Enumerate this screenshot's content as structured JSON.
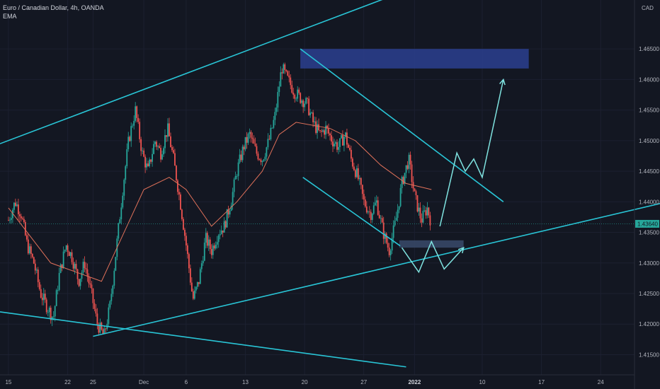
{
  "legend": {
    "title": "Euro / Canadian Dollar, 4h, OANDA",
    "indicator": "EMA"
  },
  "currency": "CAD",
  "colors": {
    "background": "#131722",
    "bull": "#26a69a",
    "bear": "#ef5350",
    "ema": "#e0715a",
    "drawing": "#29c5d6",
    "zone_upper": "#2b3f8f",
    "zone_lower": "#3a4a6a",
    "arrow": "#7fe3e0",
    "price_tag": "#26a69a"
  },
  "chart_data": {
    "type": "candlestick",
    "symbol": "Euro / Canadian Dollar",
    "interval": "4h",
    "source": "OANDA",
    "x_ticks": [
      {
        "label": "15",
        "day": 0
      },
      {
        "label": "22",
        "day": 7
      },
      {
        "label": "25",
        "day": 10
      },
      {
        "label": "Dec",
        "day": 16
      },
      {
        "label": "6",
        "day": 21
      },
      {
        "label": "13",
        "day": 28
      },
      {
        "label": "20",
        "day": 35
      },
      {
        "label": "27",
        "day": 42
      },
      {
        "label": "2022",
        "day": 48,
        "bold": true
      },
      {
        "label": "10",
        "day": 56
      },
      {
        "label": "17",
        "day": 63
      },
      {
        "label": "24",
        "day": 70
      }
    ],
    "y_ticks": [
      "1.46500",
      "1.46000",
      "1.45500",
      "1.45000",
      "1.44500",
      "1.44000",
      "1.43500",
      "1.43000",
      "1.42500",
      "1.42000",
      "1.41500"
    ],
    "y_range": [
      1.4117,
      1.473
    ],
    "current_price": "1.43640",
    "price_path": [
      [
        0.0,
        1.437
      ],
      [
        0.8,
        1.44
      ],
      [
        1.5,
        1.438
      ],
      [
        2.2,
        1.433
      ],
      [
        3.0,
        1.43
      ],
      [
        3.8,
        1.425
      ],
      [
        4.5,
        1.423
      ],
      [
        5.3,
        1.421
      ],
      [
        6.0,
        1.428
      ],
      [
        6.8,
        1.433
      ],
      [
        7.5,
        1.431
      ],
      [
        8.3,
        1.427
      ],
      [
        9.0,
        1.43
      ],
      [
        9.8,
        1.425
      ],
      [
        10.5,
        1.42
      ],
      [
        11.3,
        1.418
      ],
      [
        12.0,
        1.423
      ],
      [
        12.8,
        1.433
      ],
      [
        13.5,
        1.442
      ],
      [
        14.2,
        1.45
      ],
      [
        15.0,
        1.455
      ],
      [
        15.8,
        1.448
      ],
      [
        16.5,
        1.445
      ],
      [
        17.3,
        1.45
      ],
      [
        18.0,
        1.448
      ],
      [
        18.8,
        1.452
      ],
      [
        19.5,
        1.447
      ],
      [
        20.3,
        1.44
      ],
      [
        21.0,
        1.433
      ],
      [
        21.8,
        1.424
      ],
      [
        22.5,
        1.427
      ],
      [
        23.3,
        1.434
      ],
      [
        24.0,
        1.432
      ],
      [
        24.8,
        1.435
      ],
      [
        25.5,
        1.436
      ],
      [
        26.3,
        1.44
      ],
      [
        27.0,
        1.445
      ],
      [
        27.8,
        1.449
      ],
      [
        28.5,
        1.451
      ],
      [
        29.3,
        1.448
      ],
      [
        30.0,
        1.447
      ],
      [
        30.8,
        1.45
      ],
      [
        31.5,
        1.454
      ],
      [
        32.3,
        1.462
      ],
      [
        33.0,
        1.46
      ],
      [
        33.8,
        1.458
      ],
      [
        34.5,
        1.457
      ],
      [
        35.3,
        1.456
      ],
      [
        36.0,
        1.453
      ],
      [
        36.8,
        1.451
      ],
      [
        37.5,
        1.452
      ],
      [
        38.3,
        1.45
      ],
      [
        39.0,
        1.449
      ],
      [
        39.8,
        1.451
      ],
      [
        40.5,
        1.447
      ],
      [
        41.3,
        1.444
      ],
      [
        42.0,
        1.44
      ],
      [
        42.8,
        1.438
      ],
      [
        43.5,
        1.44
      ],
      [
        44.3,
        1.435
      ],
      [
        45.0,
        1.432
      ],
      [
        45.8,
        1.437
      ],
      [
        46.5,
        1.443
      ],
      [
        47.3,
        1.447
      ],
      [
        48.0,
        1.441
      ],
      [
        48.8,
        1.437
      ],
      [
        49.5,
        1.439
      ],
      [
        50.0,
        1.4364
      ]
    ],
    "ema_path": [
      [
        0,
        1.439
      ],
      [
        5,
        1.43
      ],
      [
        9,
        1.428
      ],
      [
        11,
        1.427
      ],
      [
        13,
        1.433
      ],
      [
        16,
        1.442
      ],
      [
        19,
        1.444
      ],
      [
        21,
        1.442
      ],
      [
        24,
        1.436
      ],
      [
        27,
        1.44
      ],
      [
        30,
        1.445
      ],
      [
        32,
        1.451
      ],
      [
        34,
        1.453
      ],
      [
        38,
        1.452
      ],
      [
        41,
        1.45
      ],
      [
        44,
        1.446
      ],
      [
        47,
        1.443
      ],
      [
        50,
        1.442
      ]
    ],
    "trend_lines": [
      {
        "name": "upper-channel",
        "from": [
          -1,
          1.4495
        ],
        "to": [
          45,
          1.4735
        ]
      },
      {
        "name": "lower-support",
        "from": [
          10,
          1.418
        ],
        "to": [
          81,
          1.441
        ]
      },
      {
        "name": "lower-falling",
        "from": [
          -1,
          1.422
        ],
        "to": [
          47,
          1.413
        ]
      },
      {
        "name": "wedge-top",
        "from": [
          34.5,
          1.465
        ],
        "to": [
          58.5,
          1.44
        ]
      },
      {
        "name": "wedge-bottom",
        "from": [
          34.8,
          1.444
        ],
        "to": [
          46.3,
          1.4328
        ]
      }
    ],
    "zones": [
      {
        "name": "resistance-zone",
        "day_from": 34.5,
        "day_to": 61.5,
        "price_from": 1.4618,
        "price_to": 1.465
      },
      {
        "name": "support-zone",
        "day_from": 46.2,
        "day_to": 53.8,
        "price_from": 1.4325,
        "price_to": 1.4337
      }
    ],
    "projection_arrows": [
      {
        "name": "w-pattern",
        "points": [
          [
            46.5,
            1.4325
          ],
          [
            48.5,
            1.4285
          ],
          [
            50.0,
            1.4335
          ],
          [
            51.5,
            1.429
          ],
          [
            53.8,
            1.4325
          ]
        ]
      },
      {
        "name": "breakout-path",
        "points": [
          [
            51.0,
            1.436
          ],
          [
            53.0,
            1.448
          ],
          [
            54.0,
            1.445
          ],
          [
            55.0,
            1.447
          ],
          [
            56.0,
            1.444
          ],
          [
            58.5,
            1.46
          ]
        ]
      }
    ]
  }
}
